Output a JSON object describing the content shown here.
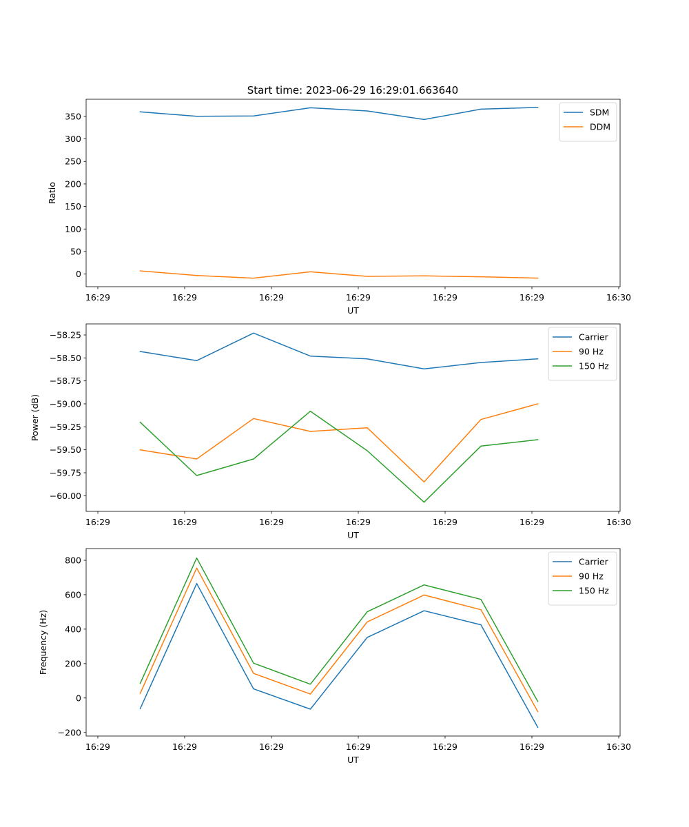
{
  "figure": {
    "title": "Start time: 2023-06-29 16:29:01.663640"
  },
  "chart_data": [
    {
      "type": "line",
      "xlabel": "UT",
      "ylabel": "Ratio",
      "x_tick_labels": [
        "16:29",
        "16:29",
        "16:29",
        "16:29",
        "16:29",
        "16:29",
        "16:29"
      ],
      "x_tick_last_label": "16:30",
      "ylim": [
        -28,
        388
      ],
      "yticks": [
        0,
        50,
        100,
        150,
        200,
        250,
        300,
        350
      ],
      "legend_position": "top-right",
      "series": [
        {
          "name": "SDM",
          "color": "#1f77b4",
          "values": [
            360,
            350,
            351,
            369,
            362,
            343,
            366,
            370
          ]
        },
        {
          "name": "DDM",
          "color": "#ff7f0e",
          "values": [
            7,
            -3,
            -9,
            5,
            -5,
            -4,
            -6,
            -9
          ]
        }
      ]
    },
    {
      "type": "line",
      "xlabel": "UT",
      "ylabel": "Power (dB)",
      "x_tick_labels": [
        "16:29",
        "16:29",
        "16:29",
        "16:29",
        "16:29",
        "16:29",
        "16:29"
      ],
      "x_tick_last_label": "16:30",
      "ylim": [
        -60.17,
        -58.13
      ],
      "yticks": [
        -60.0,
        -59.75,
        -59.5,
        -59.25,
        -59.0,
        -58.75,
        -58.5,
        -58.25
      ],
      "ytick_labels": [
        "−60.00",
        "−59.75",
        "−59.50",
        "−59.25",
        "−59.00",
        "−58.75",
        "−58.50",
        "−58.25"
      ],
      "legend_position": "top-right",
      "series": [
        {
          "name": "Carrier",
          "color": "#1f77b4",
          "values": [
            -58.43,
            -58.53,
            -58.23,
            -58.48,
            -58.51,
            -58.62,
            -58.55,
            -58.51
          ]
        },
        {
          "name": "90 Hz",
          "color": "#ff7f0e",
          "values": [
            -59.5,
            -59.6,
            -59.16,
            -59.3,
            -59.26,
            -59.85,
            -59.17,
            -59.0
          ]
        },
        {
          "name": "150 Hz",
          "color": "#2ca02c",
          "values": [
            -59.2,
            -59.78,
            -59.6,
            -59.08,
            -59.51,
            -60.07,
            -59.46,
            -59.39
          ]
        }
      ]
    },
    {
      "type": "line",
      "xlabel": "UT",
      "ylabel": "Frequency (Hz)",
      "x_tick_labels": [
        "16:29",
        "16:29",
        "16:29",
        "16:29",
        "16:29",
        "16:29",
        "16:29"
      ],
      "x_tick_last_label": "16:30",
      "ylim": [
        -221,
        868
      ],
      "yticks": [
        -200,
        0,
        200,
        400,
        600,
        800
      ],
      "ytick_labels": [
        "−200",
        "0",
        "200",
        "400",
        "600",
        "800"
      ],
      "legend_position": "top-right",
      "series": [
        {
          "name": "Carrier",
          "color": "#1f77b4",
          "values": [
            -62,
            665,
            53,
            -65,
            352,
            507,
            425,
            -170
          ]
        },
        {
          "name": "90 Hz",
          "color": "#ff7f0e",
          "values": [
            27,
            755,
            143,
            23,
            442,
            598,
            513,
            -79
          ]
        },
        {
          "name": "150 Hz",
          "color": "#2ca02c",
          "values": [
            85,
            813,
            202,
            80,
            501,
            657,
            573,
            -20
          ]
        }
      ]
    }
  ]
}
